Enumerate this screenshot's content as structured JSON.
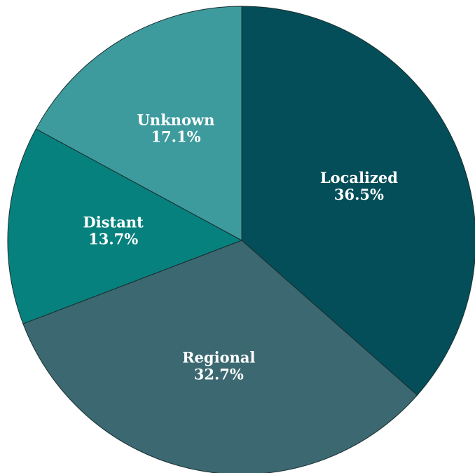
{
  "chart_data": {
    "type": "pie",
    "categories": [
      "Localized",
      "Regional",
      "Distant",
      "Unknown"
    ],
    "values": [
      36.5,
      32.7,
      13.7,
      17.1
    ],
    "value_labels": [
      "36.5%",
      "32.7%",
      "13.7%",
      "17.1%"
    ],
    "colors": [
      "#034e58",
      "#3b6871",
      "#07817e",
      "#3d9b9d"
    ]
  }
}
